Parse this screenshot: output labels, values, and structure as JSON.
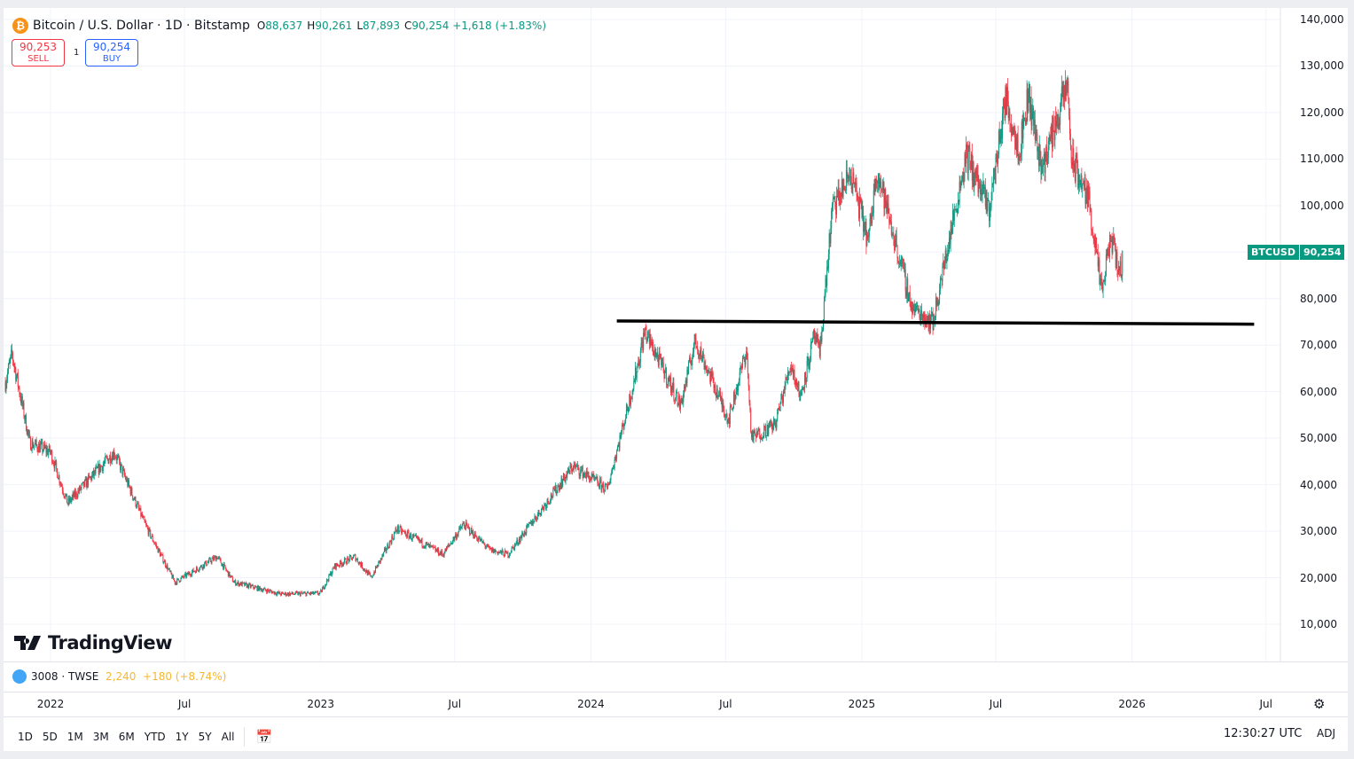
{
  "header": {
    "symbol_icon": "bitcoin-icon",
    "title": "Bitcoin / U.S. Dollar · 1D · Bitstamp",
    "open_label": "O",
    "open": "88,637",
    "high_label": "H",
    "high": "90,261",
    "low_label": "L",
    "low": "87,893",
    "close_label": "C",
    "close": "90,254",
    "change": "+1,618 (+1.83%)"
  },
  "trade": {
    "sell_price": "90,253",
    "sell_label": "SELL",
    "spread": "1",
    "buy_price": "90,254",
    "buy_label": "BUY"
  },
  "logo": "TradingView",
  "compare": {
    "symbol": "3008 · TWSE",
    "price": "2,240",
    "change": "+180 (+8.74%)",
    "color": "#f7b731"
  },
  "price_tag": {
    "symbol": "BTCUSD",
    "price": "90,254"
  },
  "range_buttons": [
    "1D",
    "5D",
    "1M",
    "3M",
    "6M",
    "YTD",
    "1Y",
    "5Y",
    "All"
  ],
  "time": "12:30:27 UTC",
  "adj": "ADJ",
  "colors": {
    "up": "#089981",
    "down": "#f23645",
    "line": "#000000"
  },
  "chart_data": {
    "type": "candlestick",
    "interval": "1D",
    "grid": true,
    "y_ticks": [
      10000,
      20000,
      30000,
      40000,
      50000,
      60000,
      70000,
      80000,
      90000,
      100000,
      110000,
      120000,
      130000,
      140000
    ],
    "y_tick_labels": [
      "10,000",
      "20,000",
      "30,000",
      "40,000",
      "50,000",
      "60,000",
      "70,000",
      "80,000",
      "",
      "100,000",
      "110,000",
      "120,000",
      "130,000",
      "140,000"
    ],
    "x_ticks": [
      [
        "2022-01-01",
        "2022"
      ],
      [
        "2022-07-01",
        "Jul"
      ],
      [
        "2023-01-01",
        "2023"
      ],
      [
        "2023-07-01",
        "Jul"
      ],
      [
        "2024-01-01",
        "2024"
      ],
      [
        "2024-07-01",
        "Jul"
      ],
      [
        "2025-01-01",
        "2025"
      ],
      [
        "2025-07-01",
        "Jul"
      ],
      [
        "2026-01-01",
        "2026"
      ],
      [
        "2026-07-01",
        "Jul"
      ]
    ],
    "approx_close_path": [
      [
        "2021-11-01",
        62000
      ],
      [
        "2021-11-10",
        68000
      ],
      [
        "2021-12-04",
        49000
      ],
      [
        "2022-01-01",
        47000
      ],
      [
        "2022-01-24",
        36000
      ],
      [
        "2022-03-28",
        47000
      ],
      [
        "2022-05-10",
        31000
      ],
      [
        "2022-06-18",
        19000
      ],
      [
        "2022-08-14",
        24500
      ],
      [
        "2022-09-06",
        19000
      ],
      [
        "2022-11-08",
        16500
      ],
      [
        "2022-12-31",
        16600
      ],
      [
        "2023-01-20",
        22500
      ],
      [
        "2023-02-16",
        24500
      ],
      [
        "2023-03-10",
        20000
      ],
      [
        "2023-04-14",
        30500
      ],
      [
        "2023-06-15",
        25000
      ],
      [
        "2023-07-13",
        31500
      ],
      [
        "2023-08-17",
        26000
      ],
      [
        "2023-09-11",
        25000
      ],
      [
        "2023-10-23",
        34000
      ],
      [
        "2023-12-08",
        44000
      ],
      [
        "2024-01-23",
        39000
      ],
      [
        "2024-02-28",
        62000
      ],
      [
        "2024-03-14",
        73000
      ],
      [
        "2024-05-01",
        57000
      ],
      [
        "2024-05-21",
        71000
      ],
      [
        "2024-07-05",
        54000
      ],
      [
        "2024-07-29",
        69000
      ],
      [
        "2024-08-05",
        50000
      ],
      [
        "2024-09-06",
        53000
      ],
      [
        "2024-09-27",
        66000
      ],
      [
        "2024-10-10",
        59000
      ],
      [
        "2024-10-29",
        72000
      ],
      [
        "2024-11-05",
        68000
      ],
      [
        "2024-11-22",
        99000
      ],
      [
        "2024-12-17",
        107000
      ],
      [
        "2025-01-10",
        92000
      ],
      [
        "2025-01-21",
        108000
      ],
      [
        "2025-02-25",
        86000
      ],
      [
        "2025-03-10",
        78000
      ],
      [
        "2025-04-07",
        75000
      ],
      [
        "2025-05-22",
        111000
      ],
      [
        "2025-06-22",
        99000
      ],
      [
        "2025-07-14",
        123000
      ],
      [
        "2025-08-02",
        112000
      ],
      [
        "2025-08-14",
        124000
      ],
      [
        "2025-09-01",
        108000
      ],
      [
        "2025-10-06",
        126000
      ],
      [
        "2025-10-11",
        110000
      ],
      [
        "2025-11-04",
        101000
      ],
      [
        "2025-11-21",
        81000
      ],
      [
        "2025-12-03",
        93000
      ],
      [
        "2025-12-18",
        85000
      ],
      [
        "2025-12-20",
        90254
      ]
    ],
    "drawings": [
      {
        "type": "trend-line",
        "from": [
          "2024-02-05",
          75200
        ],
        "to": [
          "2026-06-15",
          74500
        ]
      }
    ]
  }
}
